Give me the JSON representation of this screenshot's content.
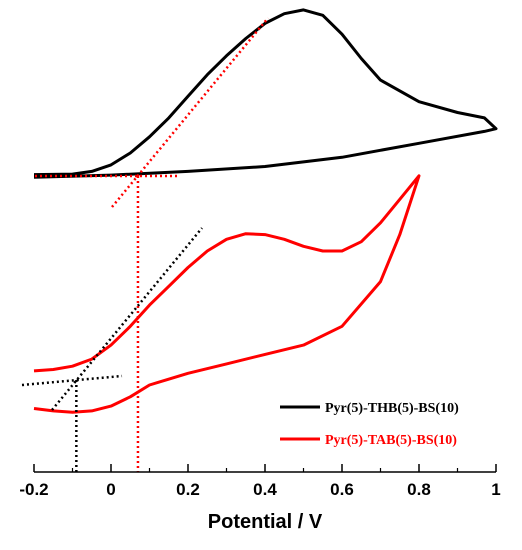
{
  "chart_data": {
    "type": "line",
    "xlabel": "Potential / V",
    "ylabel": "",
    "title": "",
    "xlim": [
      -0.2,
      1.0
    ],
    "x_ticks": [
      -0.2,
      0,
      0.2,
      0.4,
      0.6,
      0.8,
      1
    ],
    "x_tick_labels": [
      "-0.2",
      "0",
      "0.2",
      "0.4",
      "0.6",
      "0.8",
      "1"
    ],
    "grid": false,
    "legend_placement": "bottom-right",
    "series": [
      {
        "name": "Pyr(5)-THB(5)-BS(10)",
        "color": "#000000",
        "note_units": "arbitrary current (relative, upper panel)",
        "x": [
          -0.2,
          -0.1,
          -0.05,
          0.0,
          0.05,
          0.1,
          0.15,
          0.2,
          0.25,
          0.3,
          0.35,
          0.4,
          0.45,
          0.5,
          0.55,
          0.6,
          0.65,
          0.7,
          0.8,
          0.9,
          0.97,
          1.0,
          0.97,
          0.8,
          0.6,
          0.4,
          0.2,
          0.0,
          -0.2
        ],
        "y": [
          0.1,
          0.11,
          0.16,
          0.28,
          0.5,
          0.8,
          1.15,
          1.55,
          1.95,
          2.3,
          2.62,
          2.9,
          3.08,
          3.15,
          3.05,
          2.7,
          2.25,
          1.85,
          1.45,
          1.25,
          1.15,
          0.95,
          0.9,
          0.68,
          0.42,
          0.25,
          0.16,
          0.09,
          0.05
        ]
      },
      {
        "name": "Pyr(5)-TAB(5)-BS(10)",
        "color": "#ff0000",
        "note_units": "arbitrary current (relative, lower panel)",
        "x": [
          -0.2,
          -0.15,
          -0.1,
          -0.05,
          0.0,
          0.05,
          0.1,
          0.15,
          0.2,
          0.25,
          0.3,
          0.35,
          0.4,
          0.45,
          0.5,
          0.55,
          0.6,
          0.65,
          0.7,
          0.75,
          0.8,
          0.8,
          0.75,
          0.7,
          0.6,
          0.5,
          0.4,
          0.3,
          0.2,
          0.1,
          0.05,
          0.0,
          -0.05,
          -0.1,
          -0.15,
          -0.2
        ],
        "y": [
          0.3,
          0.33,
          0.4,
          0.55,
          0.85,
          1.25,
          1.7,
          2.1,
          2.5,
          2.85,
          3.1,
          3.22,
          3.2,
          3.1,
          2.95,
          2.85,
          2.85,
          3.05,
          3.45,
          3.95,
          4.45,
          4.45,
          3.2,
          2.2,
          1.25,
          0.85,
          0.65,
          0.45,
          0.25,
          0.0,
          -0.25,
          -0.45,
          -0.55,
          -0.58,
          -0.55,
          -0.5
        ]
      }
    ],
    "annotations": [
      {
        "type": "dotted-tangent",
        "color": "#ff0000",
        "desc": "onset tangent lines for THB curve",
        "onset_x": 0.07
      },
      {
        "type": "dotted-tangent",
        "color": "#000000",
        "desc": "onset tangent lines for TAB curve",
        "onset_x": -0.09
      }
    ]
  },
  "legend": {
    "items": [
      {
        "label": "Pyr(5)-THB(5)-BS(10)",
        "color": "#000000"
      },
      {
        "label": "Pyr(5)-TAB(5)-BS(10)",
        "color": "#ff0000"
      }
    ]
  }
}
